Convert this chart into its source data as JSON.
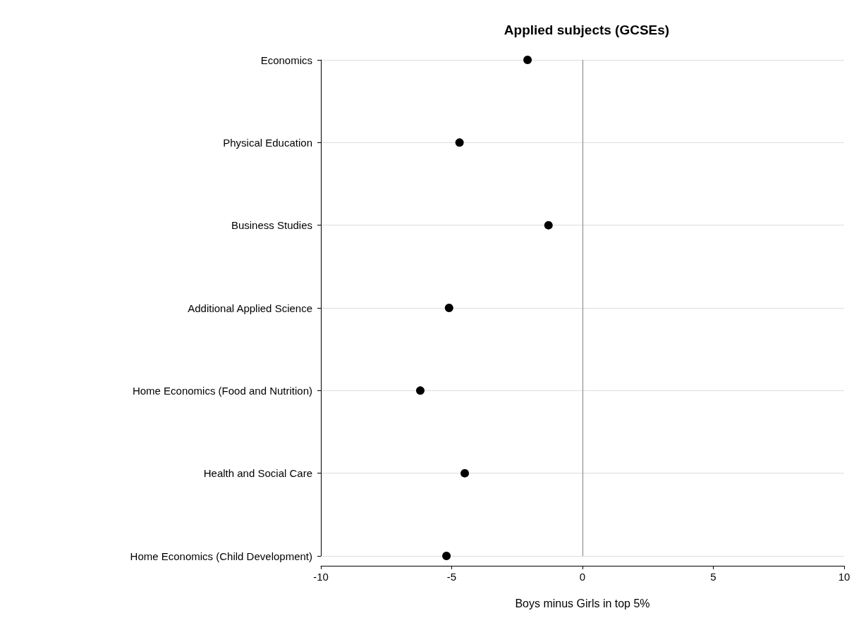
{
  "chart_data": {
    "type": "scatter",
    "title": "Applied subjects (GCSEs)",
    "xlabel": "Boys minus Girls in top 5%",
    "categories": [
      "Economics",
      "Physical Education",
      "Business Studies",
      "Additional Applied Science",
      "Home Economics (Food and Nutrition)",
      "Health and Social Care",
      "Home Economics (Child Development)"
    ],
    "values": [
      -2.1,
      -4.7,
      -1.3,
      -5.1,
      -6.2,
      -4.5,
      -5.2
    ],
    "color": "#000000",
    "orientation": "horizontal",
    "marker": "circle",
    "grid": "y",
    "xlim": [
      -10,
      10
    ],
    "xticks": [
      -10,
      -5,
      0,
      5,
      10
    ],
    "ref_lines": [
      {
        "axis": "x",
        "value": 0,
        "color": "#808080"
      }
    ]
  }
}
